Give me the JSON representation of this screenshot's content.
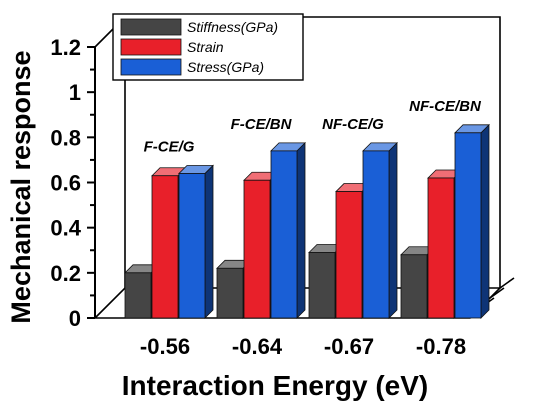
{
  "chart_data": {
    "type": "bar",
    "style": "3d-clustered",
    "categories": [
      "-0.56",
      "-0.64",
      "-0.67",
      "-0.78"
    ],
    "series": [
      {
        "name": "Stiffness(GPa)",
        "values": [
          0.2,
          0.22,
          0.29,
          0.28
        ],
        "color": "#454545"
      },
      {
        "name": "Strain",
        "values": [
          0.63,
          0.61,
          0.56,
          0.62
        ],
        "color": "#e8202a"
      },
      {
        "name": "Stress(GPa)",
        "values": [
          0.64,
          0.74,
          0.74,
          0.82
        ],
        "color": "#1a5fd6"
      }
    ],
    "annotations": [
      "F-CE/G",
      "F-CE/BN",
      "NF-CE/G",
      "NF-CE/BN"
    ],
    "xlabel": "Interaction Energy (eV)",
    "ylabel": "Mechanical response",
    "ylim": [
      0,
      1.2
    ],
    "yticks": [
      "0",
      "0.2",
      "0.4",
      "0.6",
      "0.8",
      "1",
      "1.2"
    ],
    "legend_position": "top-left",
    "grid": false
  }
}
